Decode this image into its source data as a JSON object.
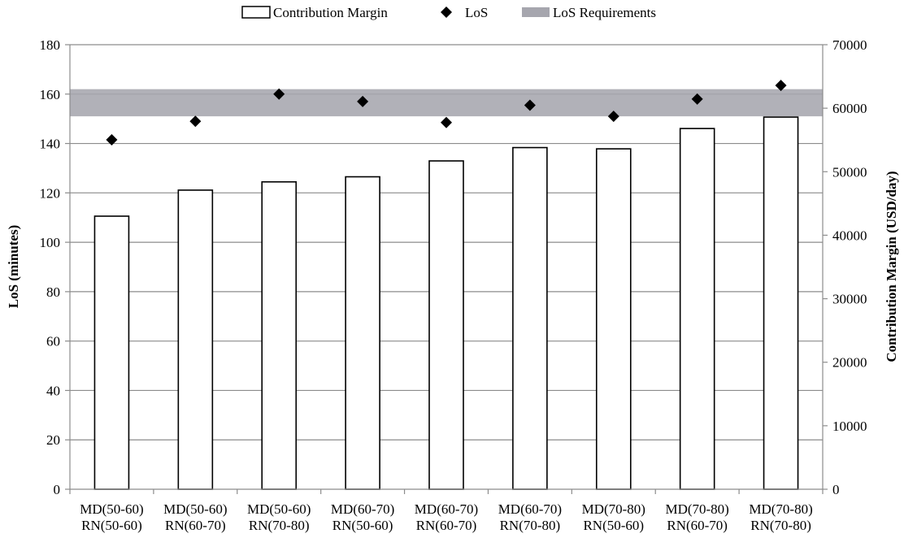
{
  "chart_data": {
    "type": "bar",
    "title": "",
    "categories": [
      [
        "MD(50-60)",
        "RN(50-60)"
      ],
      [
        "MD(50-60)",
        "RN(60-70)"
      ],
      [
        "MD(50-60)",
        "RN(70-80)"
      ],
      [
        "MD(60-70)",
        "RN(50-60)"
      ],
      [
        "MD(60-70)",
        "RN(60-70)"
      ],
      [
        "MD(60-70)",
        "RN(70-80)"
      ],
      [
        "MD(70-80)",
        "RN(50-60)"
      ],
      [
        "MD(70-80)",
        "RN(60-70)"
      ],
      [
        "MD(70-80)",
        "RN(70-80)"
      ]
    ],
    "series": [
      {
        "name": "Contribution Margin",
        "kind": "bar",
        "axis": "right",
        "values": [
          43000,
          47100,
          48400,
          49200,
          51700,
          53800,
          53600,
          56800,
          58600
        ]
      },
      {
        "name": "LoS",
        "kind": "scatter",
        "marker": "diamond",
        "axis": "left",
        "values": [
          141.5,
          149,
          160,
          157,
          148.5,
          155.5,
          151,
          158,
          163.5
        ]
      }
    ],
    "band": {
      "name": "LoS Requirements",
      "axis": "left",
      "low": 151,
      "high": 162
    },
    "y_left": {
      "label": "LoS (minutes)",
      "min": 0,
      "max": 180,
      "ticks": [
        0,
        20,
        40,
        60,
        80,
        100,
        120,
        140,
        160,
        180
      ]
    },
    "y_right": {
      "label": "Contribution Margin (USD/day)",
      "min": 0,
      "max": 70000,
      "ticks": [
        0,
        10000,
        20000,
        30000,
        40000,
        50000,
        60000,
        70000
      ]
    },
    "grid": true,
    "legend": "top-center",
    "colors": {
      "bar_fill": "#ffffff",
      "bar_stroke": "#000000",
      "marker": "#000000",
      "band": "#a6a6ae",
      "grid": "#8c8c8c",
      "axis": "#8c8c8c"
    }
  }
}
